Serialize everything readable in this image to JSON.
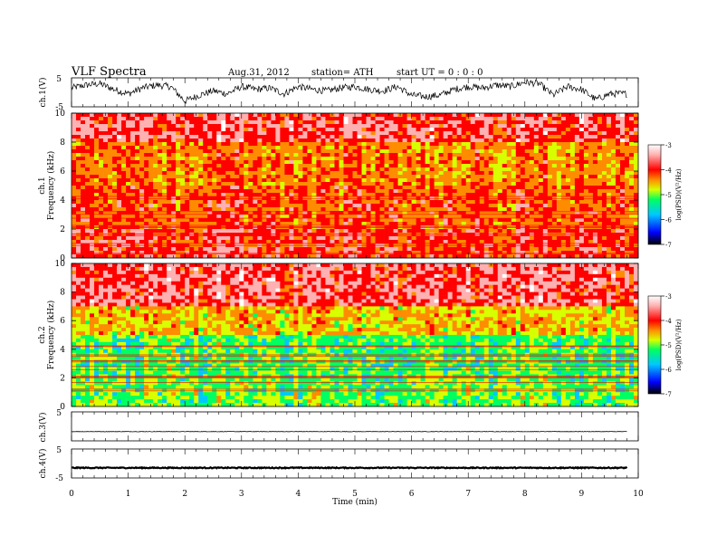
{
  "header": {
    "title": "VLF  Spectra",
    "date": "Aug.31, 2012",
    "station": "station= ATH",
    "start": "start  UT  =    0  : 0   : 0"
  },
  "chart_data": [
    {
      "type": "line",
      "panel": "ch1-waveform",
      "ylabel": "ch.1(V)",
      "ylim": [
        -5,
        5
      ],
      "y_ticks": [
        "5",
        "-5"
      ],
      "x": [
        0,
        0.25,
        0.5,
        0.75,
        1,
        1.25,
        1.5,
        1.75,
        2,
        2.25,
        2.5,
        2.75,
        3,
        3.25,
        3.5,
        3.75,
        4,
        4.25,
        4.5,
        4.75,
        5,
        5.25,
        5.5,
        5.75,
        6,
        6.25,
        6.5,
        6.75,
        7,
        7.25,
        7.5,
        7.75,
        8,
        8.25,
        8.5,
        8.75,
        9,
        9.25,
        9.5,
        9.8
      ],
      "values": [
        1.5,
        2.5,
        3.0,
        1.0,
        -0.5,
        1.5,
        2.5,
        2.0,
        -3.0,
        -1.0,
        0.5,
        -0.5,
        2.0,
        1.0,
        1.5,
        -0.5,
        2.0,
        1.0,
        0.5,
        1.5,
        2.0,
        1.0,
        0.5,
        2.0,
        -1.0,
        -1.5,
        -1.0,
        1.0,
        2.0,
        1.5,
        2.5,
        2.0,
        3.5,
        3.0,
        -1.0,
        2.0,
        1.0,
        -2.5,
        -0.5,
        -0.5
      ]
    },
    {
      "type": "heatmap",
      "panel": "ch1-spectrogram",
      "ylabel": "ch.1",
      "ylabel2": "Frequency  (kHz)",
      "ylim": [
        0,
        10
      ],
      "y_ticks": [
        "0",
        "2",
        "4",
        "6",
        "8",
        "10"
      ],
      "colorbar": {
        "label": "log(PSD)(V²/Hz)",
        "range": [
          -7,
          -3
        ],
        "ticks": [
          "-3",
          "-4",
          "-5",
          "-6",
          "-7"
        ]
      },
      "dominant_level_by_band_kHz": [
        {
          "band": [
            0,
            2
          ],
          "level": -4.0
        },
        {
          "band": [
            2,
            5
          ],
          "level": -4.2
        },
        {
          "band": [
            5,
            8
          ],
          "level": -4.4
        },
        {
          "band": [
            8,
            10
          ],
          "level": -3.8
        }
      ]
    },
    {
      "type": "heatmap",
      "panel": "ch2-spectrogram",
      "ylabel": "ch.2",
      "ylabel2": "Frequency  (kHz)",
      "ylim": [
        0,
        10
      ],
      "y_ticks": [
        "0",
        "2",
        "4",
        "6",
        "8",
        "10"
      ],
      "colorbar": {
        "label": "log(PSD)(V²/Hz)",
        "range": [
          -7,
          -3
        ],
        "ticks": [
          "-3",
          "-4",
          "-5",
          "-6",
          "-7"
        ]
      },
      "dominant_level_by_band_kHz": [
        {
          "band": [
            0,
            2
          ],
          "level": -5.3
        },
        {
          "band": [
            2,
            5
          ],
          "level": -5.4
        },
        {
          "band": [
            5,
            7
          ],
          "level": -4.7
        },
        {
          "band": [
            7,
            10
          ],
          "level": -3.8
        }
      ]
    },
    {
      "type": "line",
      "panel": "ch3-waveform",
      "ylabel": "ch.3(V)",
      "ylim": [
        -5,
        5
      ],
      "y_ticks": [
        "5"
      ],
      "x": [
        0,
        9.8
      ],
      "values": [
        -1.8,
        -1.8
      ]
    },
    {
      "type": "line",
      "panel": "ch4-waveform",
      "ylabel": "ch.4(V)",
      "ylim": [
        -5,
        5
      ],
      "y_ticks": [
        "5",
        "-5"
      ],
      "x": [
        0,
        9.8
      ],
      "values": [
        -1.5,
        -1.5
      ]
    }
  ],
  "x_axis": {
    "label": "Time  (min)",
    "xlim": [
      0,
      10
    ],
    "ticks": [
      "0",
      "1",
      "2",
      "3",
      "4",
      "5",
      "6",
      "7",
      "8",
      "9",
      "10"
    ]
  },
  "colors": {
    "spectro_scale": [
      "#000080",
      "#0000ff",
      "#00c8ff",
      "#00ff60",
      "#d8ff00",
      "#ff8c00",
      "#ff0000",
      "#ffb0b0",
      "#ffffff"
    ]
  }
}
